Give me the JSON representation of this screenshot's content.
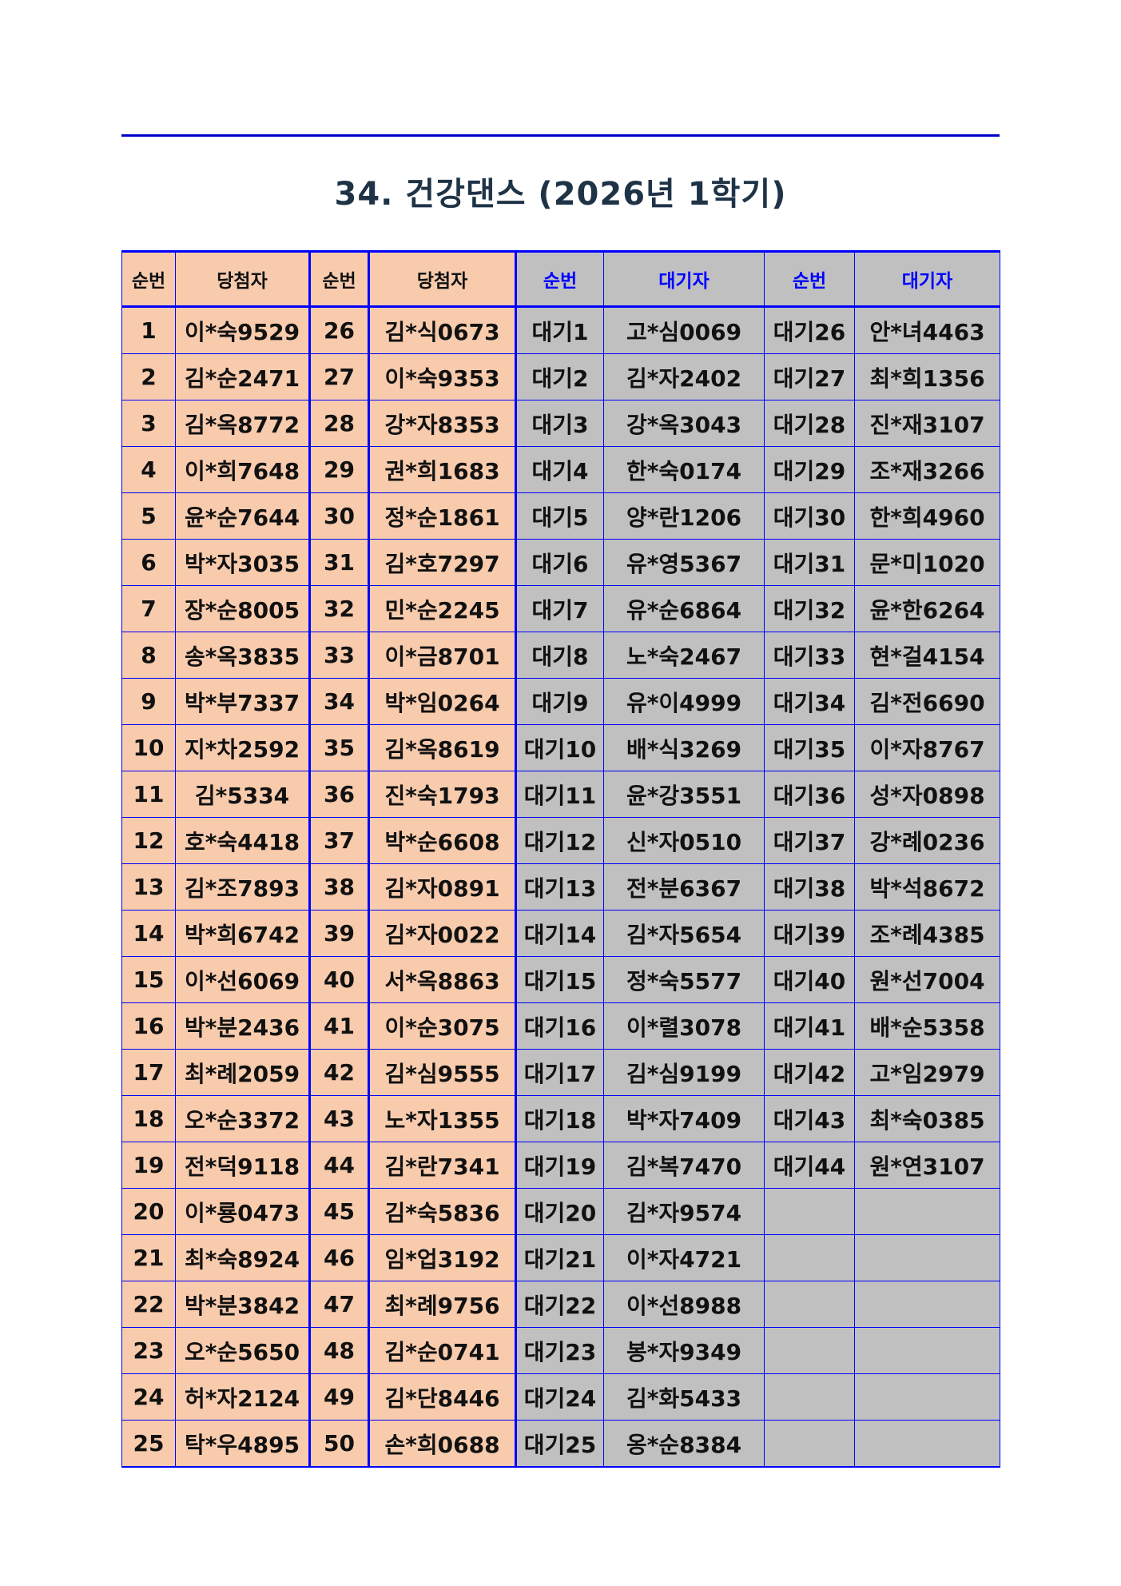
{
  "title": "34. 건강댄스 (2026년 1학기)",
  "colors": {
    "winner_bg": "#f8cbad",
    "waitlist_bg": "#c0c0c0",
    "border": "#0000ff",
    "waitlist_header_text": "#0000ff",
    "title_text": "#1f3347"
  },
  "table": {
    "headers": [
      "순번",
      "당첨자",
      "순번",
      "당첨자",
      "순번",
      "대기자",
      "순번",
      "대기자"
    ],
    "rows": [
      [
        "1",
        "이*숙9529",
        "26",
        "김*식0673",
        "대기1",
        "고*심0069",
        "대기26",
        "안*녀4463"
      ],
      [
        "2",
        "김*순2471",
        "27",
        "이*숙9353",
        "대기2",
        "김*자2402",
        "대기27",
        "최*희1356"
      ],
      [
        "3",
        "김*옥8772",
        "28",
        "강*자8353",
        "대기3",
        "강*옥3043",
        "대기28",
        "진*재3107"
      ],
      [
        "4",
        "이*희7648",
        "29",
        "권*희1683",
        "대기4",
        "한*숙0174",
        "대기29",
        "조*재3266"
      ],
      [
        "5",
        "윤*순7644",
        "30",
        "정*순1861",
        "대기5",
        "양*란1206",
        "대기30",
        "한*희4960"
      ],
      [
        "6",
        "박*자3035",
        "31",
        "김*호7297",
        "대기6",
        "유*영5367",
        "대기31",
        "문*미1020"
      ],
      [
        "7",
        "장*순8005",
        "32",
        "민*순2245",
        "대기7",
        "유*순6864",
        "대기32",
        "윤*한6264"
      ],
      [
        "8",
        "송*옥3835",
        "33",
        "이*금8701",
        "대기8",
        "노*숙2467",
        "대기33",
        "현*걸4154"
      ],
      [
        "9",
        "박*부7337",
        "34",
        "박*임0264",
        "대기9",
        "유*이4999",
        "대기34",
        "김*전6690"
      ],
      [
        "10",
        "지*차2592",
        "35",
        "김*옥8619",
        "대기10",
        "배*식3269",
        "대기35",
        "이*자8767"
      ],
      [
        "11",
        "김*5334",
        "36",
        "진*숙1793",
        "대기11",
        "윤*강3551",
        "대기36",
        "성*자0898"
      ],
      [
        "12",
        "호*숙4418",
        "37",
        "박*순6608",
        "대기12",
        "신*자0510",
        "대기37",
        "강*례0236"
      ],
      [
        "13",
        "김*조7893",
        "38",
        "김*자0891",
        "대기13",
        "전*분6367",
        "대기38",
        "박*석8672"
      ],
      [
        "14",
        "박*희6742",
        "39",
        "김*자0022",
        "대기14",
        "김*자5654",
        "대기39",
        "조*례4385"
      ],
      [
        "15",
        "이*선6069",
        "40",
        "서*옥8863",
        "대기15",
        "정*숙5577",
        "대기40",
        "원*선7004"
      ],
      [
        "16",
        "박*분2436",
        "41",
        "이*순3075",
        "대기16",
        "이*렬3078",
        "대기41",
        "배*순5358"
      ],
      [
        "17",
        "최*례2059",
        "42",
        "김*심9555",
        "대기17",
        "김*심9199",
        "대기42",
        "고*임2979"
      ],
      [
        "18",
        "오*순3372",
        "43",
        "노*자1355",
        "대기18",
        "박*자7409",
        "대기43",
        "최*숙0385"
      ],
      [
        "19",
        "전*덕9118",
        "44",
        "김*란7341",
        "대기19",
        "김*복7470",
        "대기44",
        "원*연3107"
      ],
      [
        "20",
        "이*룡0473",
        "45",
        "김*숙5836",
        "대기20",
        "김*자9574",
        "",
        ""
      ],
      [
        "21",
        "최*숙8924",
        "46",
        "임*업3192",
        "대기21",
        "이*자4721",
        "",
        ""
      ],
      [
        "22",
        "박*분3842",
        "47",
        "최*례9756",
        "대기22",
        "이*선8988",
        "",
        ""
      ],
      [
        "23",
        "오*순5650",
        "48",
        "김*순0741",
        "대기23",
        "봉*자9349",
        "",
        ""
      ],
      [
        "24",
        "허*자2124",
        "49",
        "김*단8446",
        "대기24",
        "김*화5433",
        "",
        ""
      ],
      [
        "25",
        "탁*우4895",
        "50",
        "손*희0688",
        "대기25",
        "옹*순8384",
        "",
        ""
      ]
    ]
  }
}
